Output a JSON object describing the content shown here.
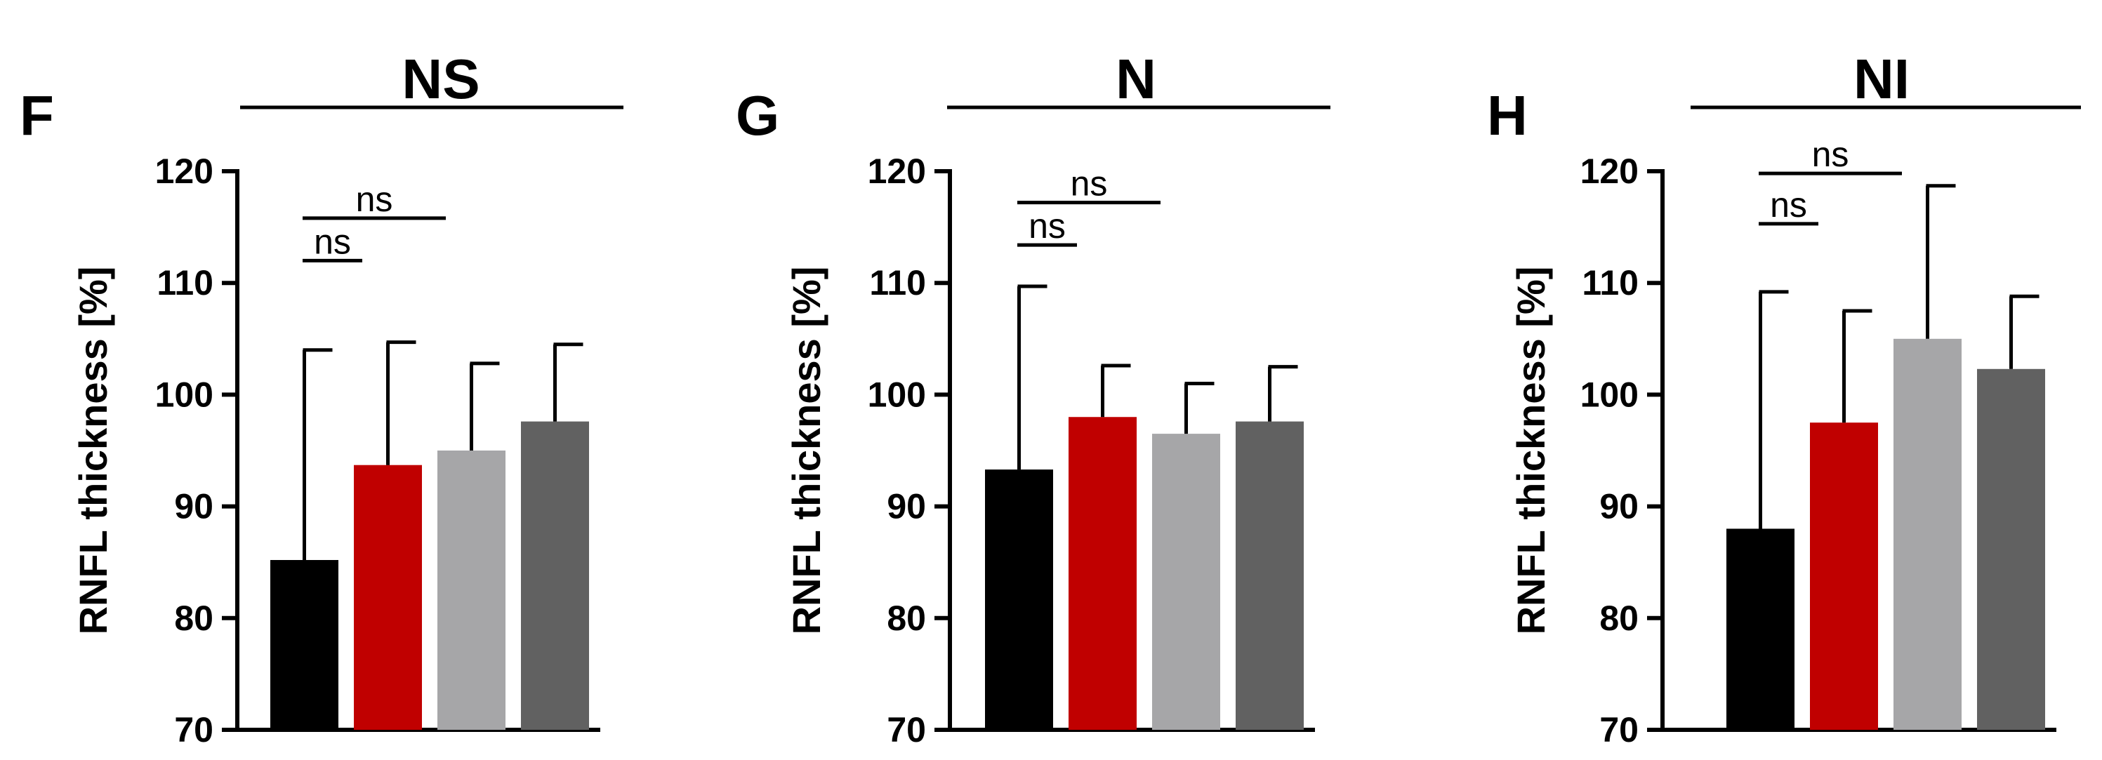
{
  "chart_data": [
    {
      "type": "bar",
      "panel": "F",
      "title": "NS",
      "ylabel": "RNFL thickness [%]",
      "ylim": [
        70,
        120
      ],
      "yticks": [
        "70",
        "80",
        "90",
        "100",
        "110",
        "120"
      ],
      "values": [
        85.2,
        93.7,
        95.0,
        97.6
      ],
      "errors": [
        18.8,
        11.0,
        7.8,
        6.9
      ],
      "colors": [
        "#000000",
        "#c00000",
        "#a6a6a8",
        "#616161"
      ],
      "comparisons": [
        {
          "from": 0,
          "to": 1,
          "y": 112.0,
          "label": "ns"
        },
        {
          "from": 0,
          "to": 2,
          "y": 115.8,
          "label": "ns"
        }
      ]
    },
    {
      "type": "bar",
      "panel": "G",
      "title": "N",
      "ylabel": "RNFL thickness [%]",
      "ylim": [
        70,
        120
      ],
      "yticks": [
        "70",
        "80",
        "90",
        "100",
        "110",
        "120"
      ],
      "values": [
        93.3,
        98.0,
        96.5,
        97.6
      ],
      "errors": [
        16.4,
        4.6,
        4.5,
        4.9
      ],
      "colors": [
        "#000000",
        "#c00000",
        "#a6a6a8",
        "#616161"
      ],
      "comparisons": [
        {
          "from": 0,
          "to": 1,
          "y": 113.4,
          "label": "ns"
        },
        {
          "from": 0,
          "to": 2,
          "y": 117.2,
          "label": "ns"
        }
      ]
    },
    {
      "type": "bar",
      "panel": "H",
      "title": "NI",
      "ylabel": "RNFL thickness [%]",
      "ylim": [
        70,
        120
      ],
      "yticks": [
        "70",
        "80",
        "90",
        "100",
        "110",
        "120"
      ],
      "values": [
        88.0,
        97.5,
        105.0,
        102.3
      ],
      "errors": [
        21.2,
        10.0,
        13.7,
        6.5
      ],
      "colors": [
        "#000000",
        "#c00000",
        "#a6a6a8",
        "#616161"
      ],
      "comparisons": [
        {
          "from": 0,
          "to": 1,
          "y": 115.3,
          "label": "ns"
        },
        {
          "from": 0,
          "to": 2,
          "y": 119.8,
          "label": "ns"
        }
      ]
    }
  ]
}
